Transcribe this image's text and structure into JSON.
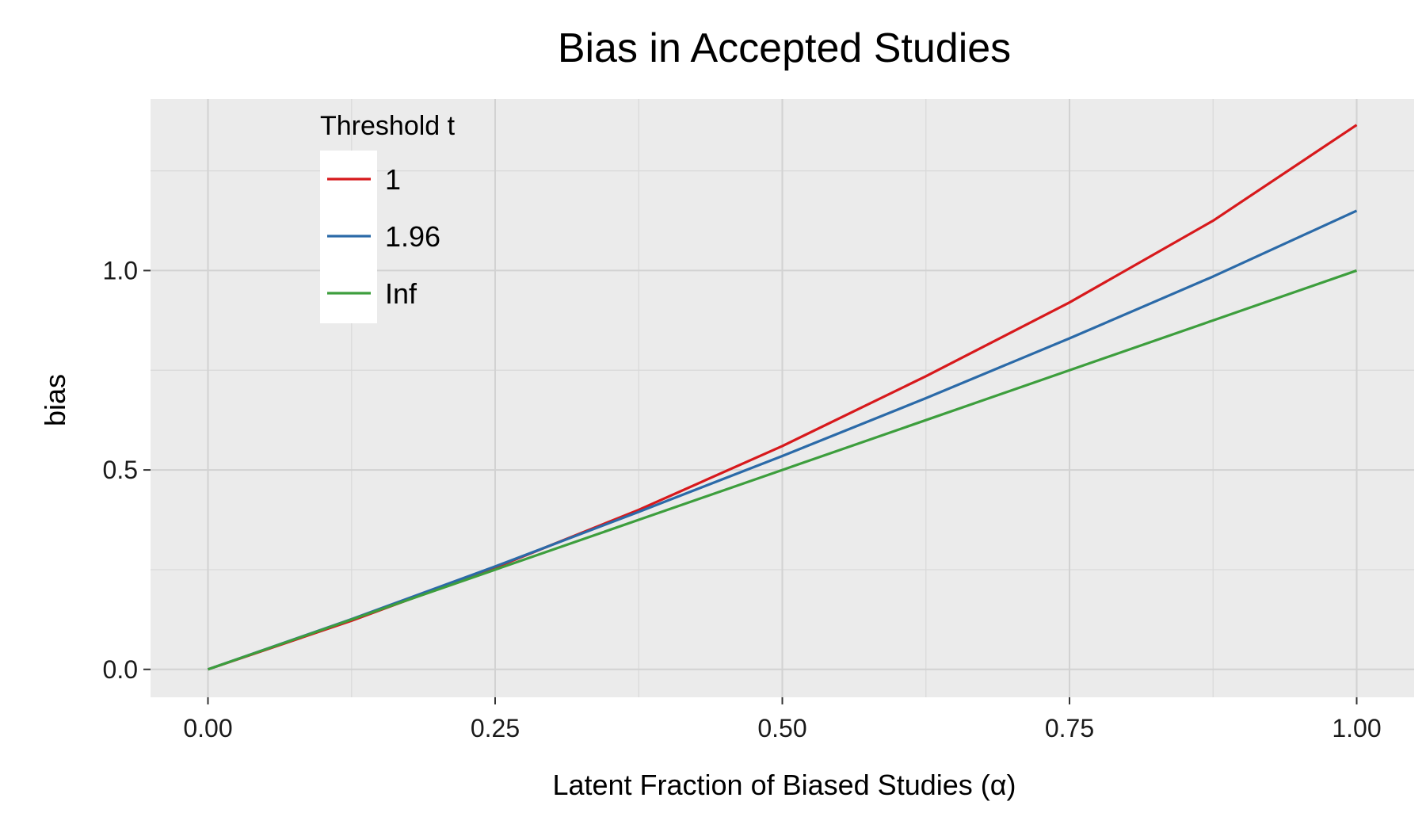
{
  "chart_data": {
    "type": "line",
    "title": "Bias in Accepted Studies",
    "xlabel": "Latent Fraction of Biased Studies (α)",
    "ylabel": "bias",
    "xlim": [
      -0.05,
      1.05
    ],
    "ylim": [
      -0.07,
      1.43
    ],
    "x_ticks": [
      "0.00",
      "0.25",
      "0.50",
      "0.75",
      "1.00"
    ],
    "x_tick_values": [
      0,
      0.25,
      0.5,
      0.75,
      1.0
    ],
    "y_ticks": [
      "0.0",
      "0.5",
      "1.0"
    ],
    "y_tick_values": [
      0,
      0.5,
      1.0
    ],
    "grid": true,
    "background": "#ebebeb",
    "legend": {
      "title": "Threshold t",
      "position": "top-left"
    },
    "x": [
      0,
      0.125,
      0.25,
      0.375,
      0.5,
      0.625,
      0.75,
      0.875,
      1.0
    ],
    "series": [
      {
        "name": "1",
        "color": "#d7191c",
        "values": [
          0,
          0.122,
          0.255,
          0.4,
          0.56,
          0.735,
          0.92,
          1.125,
          1.365
        ]
      },
      {
        "name": "1.96",
        "color": "#2b6aa8",
        "values": [
          0,
          0.126,
          0.258,
          0.395,
          0.535,
          0.68,
          0.83,
          0.985,
          1.15
        ]
      },
      {
        "name": "Inf",
        "color": "#3d9e3d",
        "values": [
          0,
          0.125,
          0.25,
          0.375,
          0.5,
          0.625,
          0.75,
          0.875,
          1.0
        ]
      }
    ]
  }
}
